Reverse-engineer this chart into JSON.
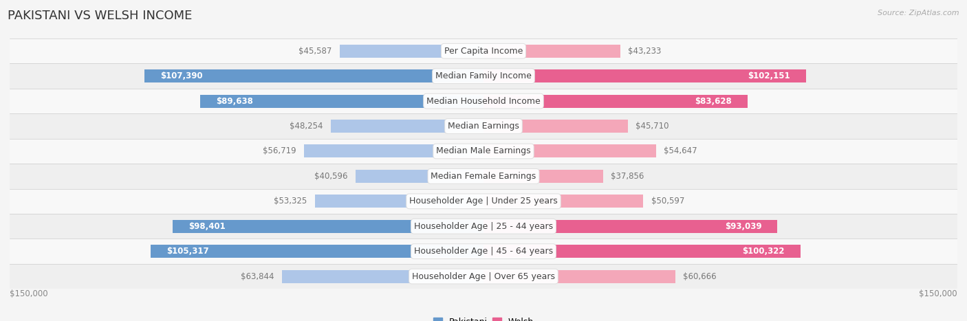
{
  "title": "PAKISTANI VS WELSH INCOME",
  "source": "Source: ZipAtlas.com",
  "categories": [
    "Per Capita Income",
    "Median Family Income",
    "Median Household Income",
    "Median Earnings",
    "Median Male Earnings",
    "Median Female Earnings",
    "Householder Age | Under 25 years",
    "Householder Age | 25 - 44 years",
    "Householder Age | 45 - 64 years",
    "Householder Age | Over 65 years"
  ],
  "pakistani_values": [
    45587,
    107390,
    89638,
    48254,
    56719,
    40596,
    53325,
    98401,
    105317,
    63844
  ],
  "welsh_values": [
    43233,
    102151,
    83628,
    45710,
    54647,
    37856,
    50597,
    93039,
    100322,
    60666
  ],
  "pakistani_labels": [
    "$45,587",
    "$107,390",
    "$89,638",
    "$48,254",
    "$56,719",
    "$40,596",
    "$53,325",
    "$98,401",
    "$105,317",
    "$63,844"
  ],
  "welsh_labels": [
    "$43,233",
    "$102,151",
    "$83,628",
    "$45,710",
    "$54,647",
    "$37,856",
    "$50,597",
    "$93,039",
    "$100,322",
    "$60,666"
  ],
  "max_value": 150000,
  "pakistani_color_light": "#aec6e8",
  "pakistani_color_dark": "#6699CC",
  "welsh_color_light": "#f4a7b9",
  "welsh_color_dark": "#E86090",
  "background_color": "#f5f5f5",
  "row_even_color": "#f0f0f0",
  "row_odd_color": "#fafafa",
  "title_fontsize": 13,
  "label_fontsize": 8.5,
  "category_fontsize": 9,
  "threshold_inside": 70000,
  "x_axis_label": "$150,000"
}
